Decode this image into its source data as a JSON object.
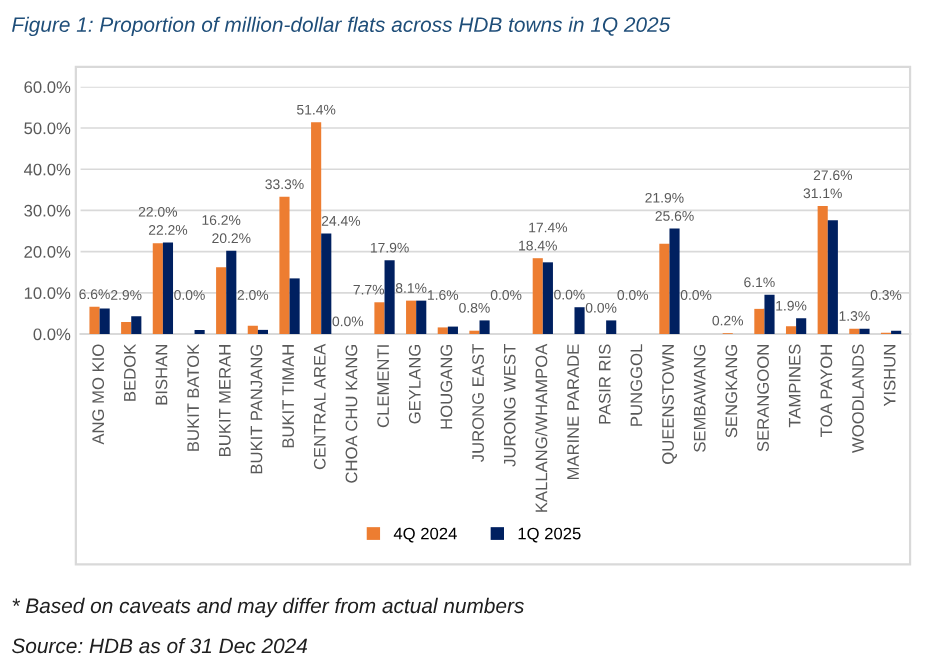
{
  "chart_data": {
    "type": "bar",
    "title": "Figure 1: Proportion of million-dollar flats across HDB towns in 1Q 2025",
    "categories": [
      "ANG MO KIO",
      "BEDOK",
      "BISHAN",
      "BUKIT BATOK",
      "BUKIT MERAH",
      "BUKIT PANJANG",
      "BUKIT TIMAH",
      "CENTRAL AREA",
      "CHOA CHU KANG",
      "CLEMENTI",
      "GEYLANG",
      "HOUGANG",
      "JURONG EAST",
      "JURONG WEST",
      "KALLANG/WHAMPOA",
      "MARINE PARADE",
      "PASIR RIS",
      "PUNGGOL",
      "QUEENSTOWN",
      "SEMBAWANG",
      "SENGKANG",
      "SERANGOON",
      "TAMPINES",
      "TOA PAYOH",
      "WOODLANDS",
      "YISHUN"
    ],
    "series": [
      {
        "name": "4Q 2024",
        "color": "#ed7d31",
        "values": [
          6.6,
          2.9,
          22.0,
          0.0,
          16.2,
          2.0,
          33.3,
          51.4,
          0.0,
          7.7,
          8.1,
          1.6,
          0.8,
          0.0,
          18.4,
          0.0,
          0.0,
          0.0,
          21.9,
          0.0,
          0.2,
          6.1,
          1.9,
          31.1,
          1.3,
          0.3
        ],
        "value_labels": [
          "6.6%",
          "2.9%",
          "22.0%",
          "0.0%",
          "16.2%",
          "2.0%",
          "33.3%",
          "51.4%",
          "0.0%",
          "7.7%",
          "8.1%",
          "1.6%",
          "0.8%",
          "0.0%",
          "18.4%",
          "0.0%",
          "0.0%",
          "0.0%",
          "21.9%",
          "0.0%",
          "0.2%",
          "6.1%",
          "1.9%",
          "31.1%",
          "1.3%",
          "0.3%"
        ]
      },
      {
        "name": "1Q 2025",
        "color": "#002060",
        "values": [
          6.2,
          4.3,
          22.2,
          1.0,
          20.2,
          1.0,
          13.5,
          24.4,
          0.0,
          17.9,
          8.1,
          1.8,
          3.3,
          0.0,
          17.4,
          6.5,
          3.3,
          0.0,
          25.6,
          0.0,
          0.0,
          9.5,
          3.8,
          27.6,
          1.3,
          0.8
        ],
        "value_labels": [
          null,
          null,
          "22.2%",
          null,
          "20.2%",
          null,
          null,
          "24.4%",
          null,
          "17.9%",
          null,
          null,
          null,
          null,
          "17.4%",
          null,
          null,
          null,
          "25.6%",
          null,
          null,
          null,
          null,
          "27.6%",
          null,
          null
        ]
      }
    ],
    "ylim": [
      0,
      60
    ],
    "yticks": [
      {
        "value": 0,
        "label": "0.0%"
      },
      {
        "value": 10,
        "label": "10.0%"
      },
      {
        "value": 20,
        "label": "20.0%"
      },
      {
        "value": 30,
        "label": "30.0%"
      },
      {
        "value": 40,
        "label": "40.0%"
      },
      {
        "value": 50,
        "label": "50.0%"
      },
      {
        "value": 60,
        "label": "60.0%"
      }
    ],
    "grid": "y",
    "legend": "bottom",
    "annotations": [
      "* Based on caveats and may differ from actual numbers",
      "Source: HDB as of 31 Dec 2024"
    ]
  }
}
